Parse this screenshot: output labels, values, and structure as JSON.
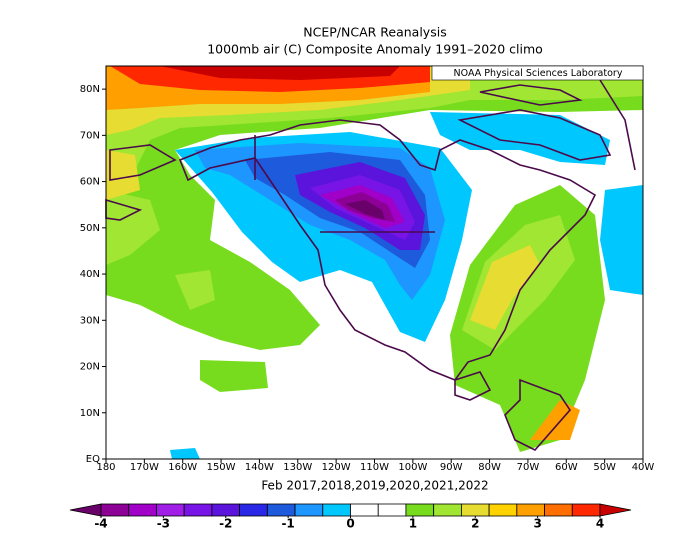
{
  "chart_data": {
    "type": "map",
    "title": "NCEP/NCAR Reanalysis",
    "subtitle": "1000mb air (C) Composite Anomaly 1991–2020 climo",
    "credit": "NOAA Physical Sciences Laboratory",
    "x_label": "Feb 2017,2018,2019,2020,2021,2022",
    "xlim": [
      -180,
      -40
    ],
    "ylim": [
      0,
      85
    ],
    "xticks": [
      {
        "value": -180,
        "label": "180"
      },
      {
        "value": -170,
        "label": "170W"
      },
      {
        "value": -160,
        "label": "160W"
      },
      {
        "value": -150,
        "label": "150W"
      },
      {
        "value": -140,
        "label": "140W"
      },
      {
        "value": -130,
        "label": "130W"
      },
      {
        "value": -120,
        "label": "120W"
      },
      {
        "value": -110,
        "label": "110W"
      },
      {
        "value": -100,
        "label": "100W"
      },
      {
        "value": -90,
        "label": "90W"
      },
      {
        "value": -80,
        "label": "80W"
      },
      {
        "value": -70,
        "label": "70W"
      },
      {
        "value": -60,
        "label": "60W"
      },
      {
        "value": -50,
        "label": "50W"
      },
      {
        "value": -40,
        "label": "40W"
      }
    ],
    "yticks": [
      {
        "value": 0,
        "label": "EQ"
      },
      {
        "value": 10,
        "label": "10N"
      },
      {
        "value": 20,
        "label": "20N"
      },
      {
        "value": 30,
        "label": "30N"
      },
      {
        "value": 40,
        "label": "40N"
      },
      {
        "value": 50,
        "label": "50N"
      },
      {
        "value": 60,
        "label": "60N"
      },
      {
        "value": 70,
        "label": "70N"
      },
      {
        "value": 80,
        "label": "80N"
      }
    ],
    "colorbar": {
      "clim": [
        -4,
        4
      ],
      "ticks": [
        -4,
        -3,
        -2,
        -1,
        0,
        1,
        2,
        3,
        4
      ],
      "colors": [
        "#6a006a",
        "#8c0096",
        "#a000c8",
        "#a01ee6",
        "#7814e6",
        "#5a14dc",
        "#2828e6",
        "#1e5adc",
        "#1e96ff",
        "#00c8ff",
        "#ffffff",
        "#ffffff",
        "#78dc1e",
        "#a0e632",
        "#e6dc32",
        "#ffd200",
        "#ffa000",
        "#ff6e00",
        "#ff2800",
        "#c80000"
      ]
    }
  }
}
